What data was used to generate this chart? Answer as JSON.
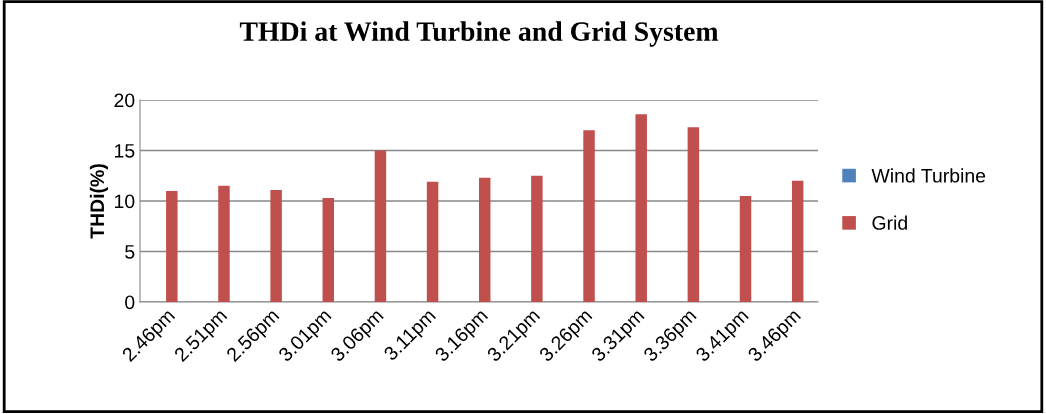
{
  "chart_data": {
    "type": "bar",
    "title": "THDi at Wind Turbine and Grid System",
    "ylabel": "THDi(%)",
    "categories": [
      "2.46pm",
      "2.51pm",
      "2.56pm",
      "3.01pm",
      "3.06pm",
      "3.11pm",
      "3.16pm",
      "3.21pm",
      "3.26pm",
      "3.31pm",
      "3.36pm",
      "3.41pm",
      "3.46pm"
    ],
    "series": [
      {
        "name": "Wind Turbine",
        "color": "#4f81bd",
        "values": [
          null,
          null,
          null,
          null,
          null,
          null,
          null,
          null,
          null,
          null,
          null,
          null,
          null
        ]
      },
      {
        "name": "Grid",
        "color": "#c0504d",
        "values": [
          11,
          11.5,
          11.1,
          10.3,
          15,
          11.9,
          12.3,
          12.5,
          17,
          18.6,
          17.3,
          10.5,
          12
        ]
      }
    ],
    "ylim": [
      0,
      20
    ],
    "yticks": [
      0,
      5,
      10,
      15,
      20
    ],
    "grid": "y",
    "legend": "right"
  }
}
